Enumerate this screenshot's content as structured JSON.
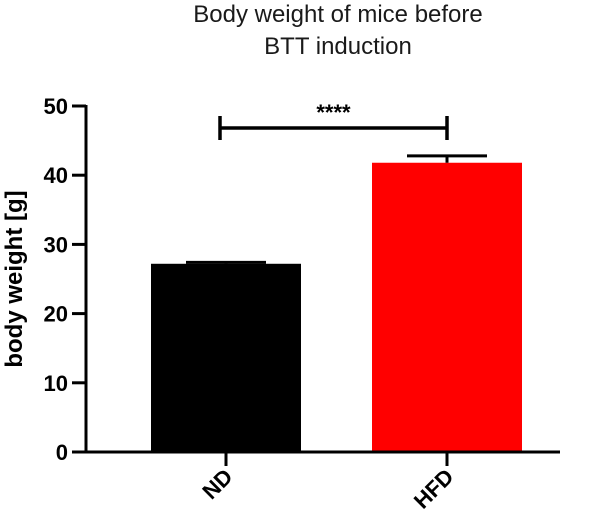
{
  "chart_data": {
    "type": "bar",
    "title_lines": [
      "Body weight of mice before",
      "BTT induction"
    ],
    "ylabel": "body weight [g]",
    "xlabel": "",
    "categories": [
      "ND",
      "HFD"
    ],
    "values": [
      27.2,
      41.8
    ],
    "errors": [
      0.2,
      1.0
    ],
    "colors": [
      "#000000",
      "#ff0000"
    ],
    "ylim": [
      0,
      50
    ],
    "yticks": [
      0,
      10,
      20,
      30,
      40,
      50
    ],
    "ytick_labels": [
      "0",
      "10",
      "20",
      "30",
      "40",
      "50"
    ],
    "grid": false,
    "legend": "none",
    "significance": {
      "from": "ND",
      "to": "HFD",
      "label": "****"
    }
  }
}
